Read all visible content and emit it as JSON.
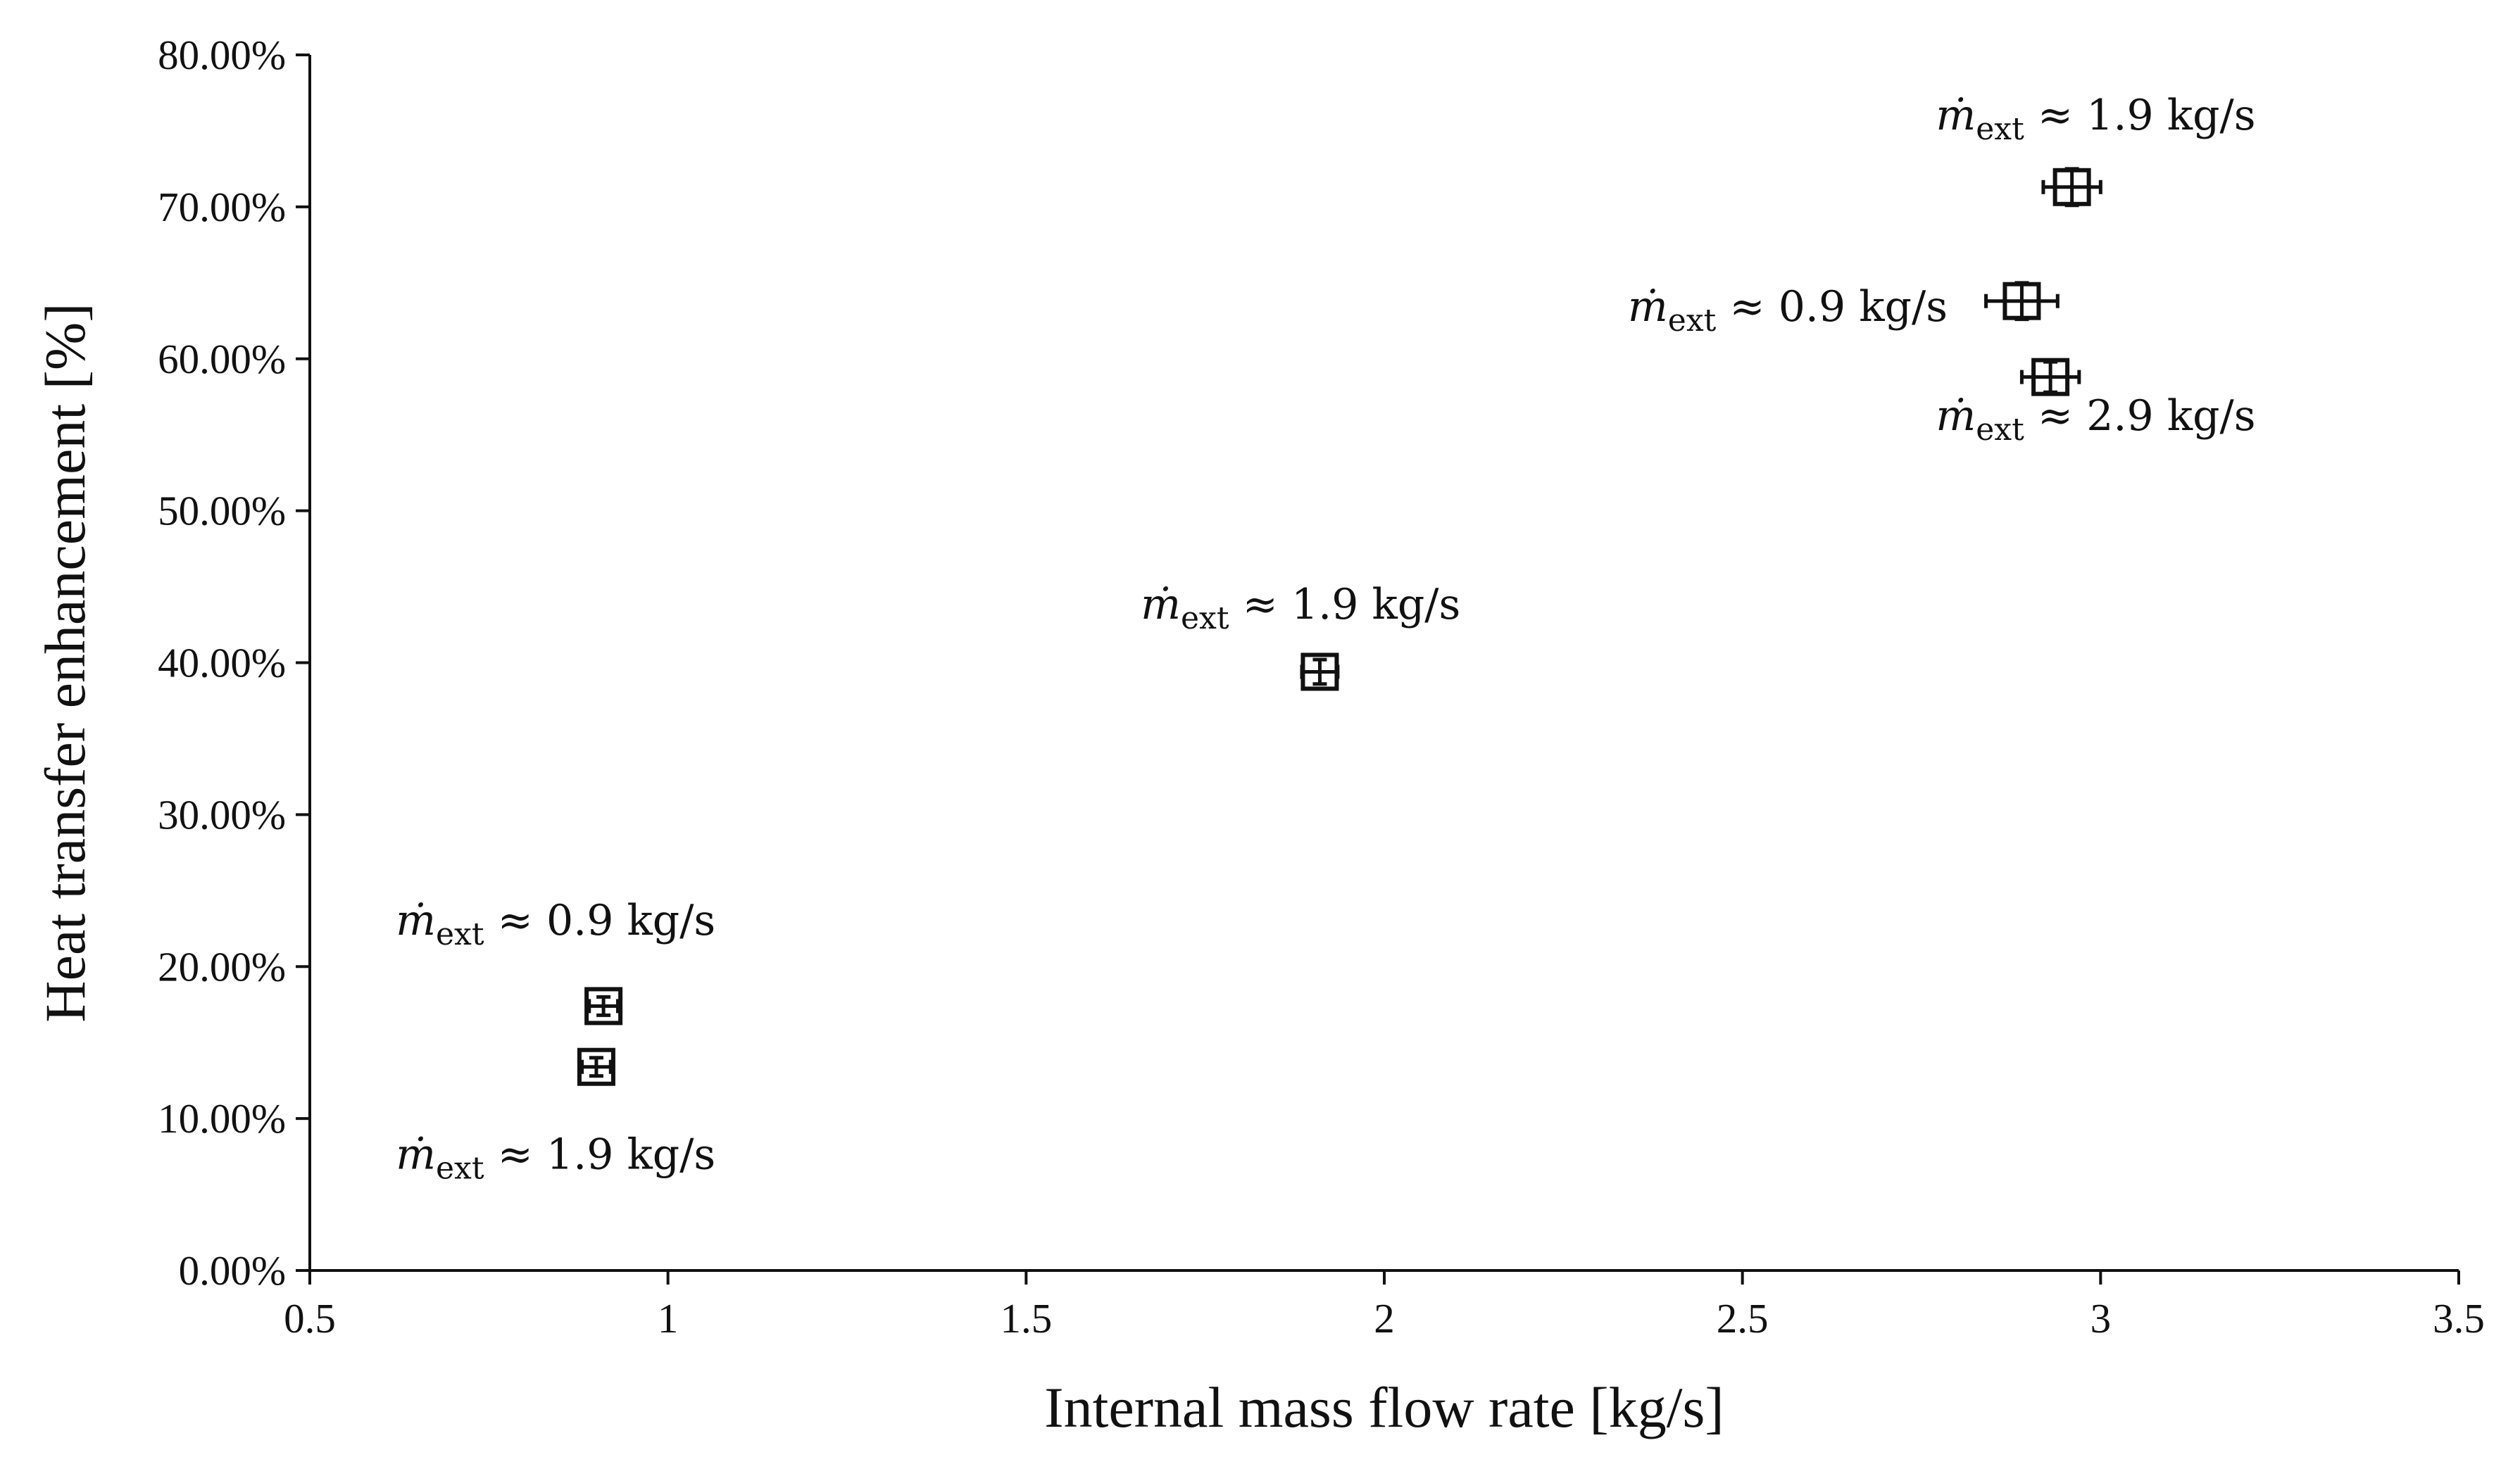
{
  "chart_data": {
    "type": "scatter",
    "title": "",
    "xlabel": "Internal mass flow rate [kg/s]",
    "ylabel": "Heat transfer enhancement [%]",
    "xlim": [
      0.5,
      3.5
    ],
    "ylim": [
      0,
      80
    ],
    "x_ticks": [
      0.5,
      1,
      1.5,
      2,
      2.5,
      3,
      3.5
    ],
    "x_tick_labels": [
      "0.5",
      "1",
      "1.5",
      "2",
      "2.5",
      "3",
      "3.5"
    ],
    "y_ticks": [
      0,
      10,
      20,
      30,
      40,
      50,
      60,
      70,
      80
    ],
    "y_tick_labels": [
      "0.00%",
      "10.00%",
      "20.00%",
      "30.00%",
      "40.00%",
      "50.00%",
      "60.00%",
      "70.00%",
      "80.00%"
    ],
    "grid": false,
    "legend": null,
    "points": [
      {
        "x": 0.91,
        "y": 17.4,
        "x_err": 0.02,
        "y_err": 0.6
      },
      {
        "x": 0.9,
        "y": 13.4,
        "x_err": 0.02,
        "y_err": 0.6
      },
      {
        "x": 1.91,
        "y": 39.4,
        "x_err": 0.025,
        "y_err": 0.8
      },
      {
        "x": 2.89,
        "y": 63.8,
        "x_err": 0.05,
        "y_err": 1.2
      },
      {
        "x": 2.93,
        "y": 58.8,
        "x_err": 0.04,
        "y_err": 1.0
      },
      {
        "x": 2.96,
        "y": 71.3,
        "x_err": 0.04,
        "y_err": 1.2
      }
    ],
    "annotations": [
      {
        "symbol": "ṁ",
        "sub": "ext",
        "text": "≈ 0.9 kg/s",
        "at_x": 0.62,
        "at_y": 22.1
      },
      {
        "symbol": "ṁ",
        "sub": "ext",
        "text": "≈ 1.9 kg/s",
        "at_x": 0.62,
        "at_y": 6.7
      },
      {
        "symbol": "ṁ",
        "sub": "ext",
        "text": "≈ 1.9 kg/s",
        "at_x": 1.66,
        "at_y": 42.9
      },
      {
        "symbol": "ṁ",
        "sub": "ext",
        "text": "≈ 0.9 kg/s",
        "at_x": 2.34,
        "at_y": 62.5
      },
      {
        "symbol": "ṁ",
        "sub": "ext",
        "text": "≈ 2.9 kg/s",
        "at_x": 2.77,
        "at_y": 55.3
      },
      {
        "symbol": "ṁ",
        "sub": "ext",
        "text": "≈ 1.9 kg/s",
        "at_x": 2.77,
        "at_y": 75.1
      }
    ]
  }
}
